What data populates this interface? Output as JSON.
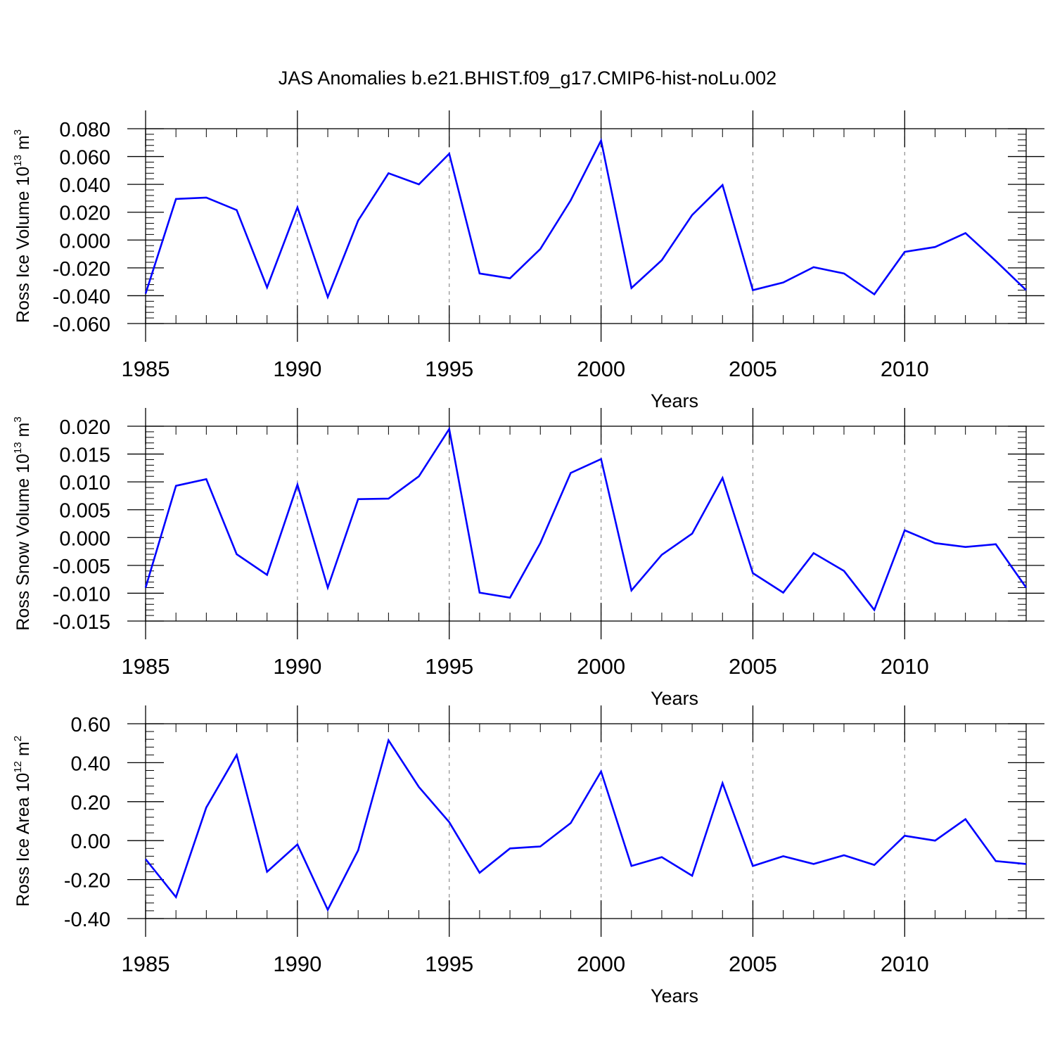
{
  "figure_title": "JAS Anomalies b.e21.BHIST.f09_g17.CMIP6-hist-noLu.002",
  "colors": {
    "line": "#0000ff",
    "axis": "#000000",
    "grid": "#8c8c8c"
  },
  "chart_data": [
    {
      "type": "line",
      "title": "JAS Anomalies b.e21.BHIST.f09_g17.CMIP6-hist-noLu.002",
      "xlabel": "Years",
      "ylabel_main": "Ross Ice Volume 10",
      "ylabel_exp": "13",
      "ylabel_unit": "m",
      "ylabel_unit_exp": "3",
      "xlim": [
        1985,
        2014
      ],
      "ylim": [
        -0.06,
        0.08
      ],
      "yticks": [
        -0.06,
        -0.04,
        -0.02,
        0.0,
        0.02,
        0.04,
        0.06,
        0.08
      ],
      "ytick_labels": [
        "-0.060",
        "-0.040",
        "-0.020",
        "0.000",
        "0.020",
        "0.040",
        "0.060",
        "0.080"
      ],
      "xticks": [
        1985,
        1990,
        1995,
        2000,
        2005,
        2010
      ],
      "xtick_labels": [
        "1985",
        "1990",
        "1995",
        "2000",
        "2005",
        "2010"
      ],
      "x": [
        1985,
        1986,
        1987,
        1988,
        1989,
        1990,
        1991,
        1992,
        1993,
        1994,
        1995,
        1996,
        1997,
        1998,
        1999,
        2000,
        2001,
        2002,
        2003,
        2004,
        2005,
        2006,
        2007,
        2008,
        2009,
        2010,
        2011,
        2012,
        2013,
        2014
      ],
      "values": [
        -0.0385,
        0.0295,
        0.0305,
        0.0215,
        -0.034,
        0.0235,
        -0.041,
        0.014,
        0.048,
        0.04,
        0.062,
        -0.024,
        -0.0275,
        -0.0065,
        0.0285,
        0.0715,
        -0.0345,
        -0.0145,
        0.018,
        0.0395,
        -0.036,
        -0.0305,
        -0.0195,
        -0.024,
        -0.039,
        -0.0085,
        -0.005,
        0.005,
        -0.015,
        -0.036
      ]
    },
    {
      "type": "line",
      "xlabel": "Years",
      "ylabel_main": "Ross Snow Volume 10",
      "ylabel_exp": "13",
      "ylabel_unit": "m",
      "ylabel_unit_exp": "3",
      "xlim": [
        1985,
        2014
      ],
      "ylim": [
        -0.015,
        0.02
      ],
      "yticks": [
        -0.015,
        -0.01,
        -0.005,
        0.0,
        0.005,
        0.01,
        0.015,
        0.02
      ],
      "ytick_labels": [
        "-0.015",
        "-0.010",
        "-0.005",
        "0.000",
        "0.005",
        "0.010",
        "0.015",
        "0.020"
      ],
      "xticks": [
        1985,
        1990,
        1995,
        2000,
        2005,
        2010
      ],
      "xtick_labels": [
        "1985",
        "1990",
        "1995",
        "2000",
        "2005",
        "2010"
      ],
      "x": [
        1985,
        1986,
        1987,
        1988,
        1989,
        1990,
        1991,
        1992,
        1993,
        1994,
        1995,
        1996,
        1997,
        1998,
        1999,
        2000,
        2001,
        2002,
        2003,
        2004,
        2005,
        2006,
        2007,
        2008,
        2009,
        2010,
        2011,
        2012,
        2013,
        2014
      ],
      "values": [
        -0.009,
        0.0093,
        0.0105,
        -0.003,
        -0.0067,
        0.0095,
        -0.009,
        0.0069,
        0.007,
        0.011,
        0.0195,
        -0.0099,
        -0.0108,
        -0.001,
        0.0116,
        0.0141,
        -0.0095,
        -0.0031,
        0.0007,
        0.0107,
        -0.0064,
        -0.0099,
        -0.0028,
        -0.006,
        -0.013,
        0.0013,
        -0.001,
        -0.0017,
        -0.0012,
        -0.009
      ]
    },
    {
      "type": "line",
      "xlabel": "Years",
      "ylabel_main": "Ross Ice Area 10",
      "ylabel_exp": "12",
      "ylabel_unit": "m",
      "ylabel_unit_exp": "2",
      "xlim": [
        1985,
        2014
      ],
      "ylim": [
        -0.4,
        0.6
      ],
      "yticks": [
        -0.4,
        -0.2,
        0.0,
        0.2,
        0.4,
        0.6
      ],
      "ytick_labels": [
        "-0.40",
        "-0.20",
        "0.00",
        "0.20",
        "0.40",
        "0.60"
      ],
      "xticks": [
        1985,
        1990,
        1995,
        2000,
        2005,
        2010
      ],
      "xtick_labels": [
        "1985",
        "1990",
        "1995",
        "2000",
        "2005",
        "2010"
      ],
      "x": [
        1985,
        1986,
        1987,
        1988,
        1989,
        1990,
        1991,
        1992,
        1993,
        1994,
        1995,
        1996,
        1997,
        1998,
        1999,
        2000,
        2001,
        2002,
        2003,
        2004,
        2005,
        2006,
        2007,
        2008,
        2009,
        2010,
        2011,
        2012,
        2013,
        2014
      ],
      "values": [
        -0.095,
        -0.29,
        0.17,
        0.44,
        -0.16,
        -0.02,
        -0.355,
        -0.05,
        0.515,
        0.275,
        0.095,
        -0.165,
        -0.04,
        -0.03,
        0.09,
        0.355,
        -0.13,
        -0.085,
        -0.18,
        0.295,
        -0.13,
        -0.08,
        -0.12,
        -0.075,
        -0.125,
        0.025,
        0.0,
        0.11,
        -0.105,
        -0.12
      ]
    }
  ]
}
